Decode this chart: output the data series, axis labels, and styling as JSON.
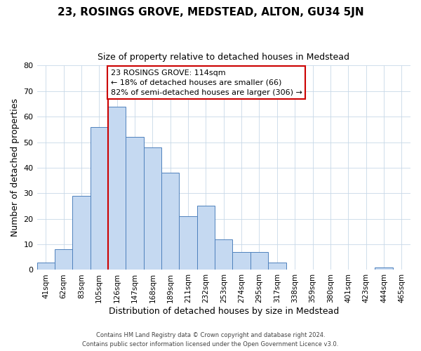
{
  "title": "23, ROSINGS GROVE, MEDSTEAD, ALTON, GU34 5JN",
  "subtitle": "Size of property relative to detached houses in Medstead",
  "xlabel": "Distribution of detached houses by size in Medstead",
  "ylabel": "Number of detached properties",
  "bar_labels": [
    "41sqm",
    "62sqm",
    "83sqm",
    "105sqm",
    "126sqm",
    "147sqm",
    "168sqm",
    "189sqm",
    "211sqm",
    "232sqm",
    "253sqm",
    "274sqm",
    "295sqm",
    "317sqm",
    "338sqm",
    "359sqm",
    "380sqm",
    "401sqm",
    "423sqm",
    "444sqm",
    "465sqm"
  ],
  "bar_values": [
    3,
    8,
    29,
    56,
    64,
    52,
    48,
    38,
    21,
    25,
    12,
    7,
    7,
    3,
    0,
    0,
    0,
    0,
    0,
    1,
    0
  ],
  "bar_color": "#c5d9f1",
  "bar_edge_color": "#4f81bd",
  "vline_color": "#cc0000",
  "annotation_text": "23 ROSINGS GROVE: 114sqm\n← 18% of detached houses are smaller (66)\n82% of semi-detached houses are larger (306) →",
  "annotation_box_color": "#ffffff",
  "annotation_box_edge": "#cc0000",
  "ylim": [
    0,
    80
  ],
  "yticks": [
    0,
    10,
    20,
    30,
    40,
    50,
    60,
    70,
    80
  ],
  "footer_line1": "Contains HM Land Registry data © Crown copyright and database right 2024.",
  "footer_line2": "Contains public sector information licensed under the Open Government Licence v3.0.",
  "background_color": "#ffffff",
  "grid_color": "#c8d8e8",
  "title_fontsize": 11,
  "subtitle_fontsize": 9,
  "vline_bar_index": 4
}
